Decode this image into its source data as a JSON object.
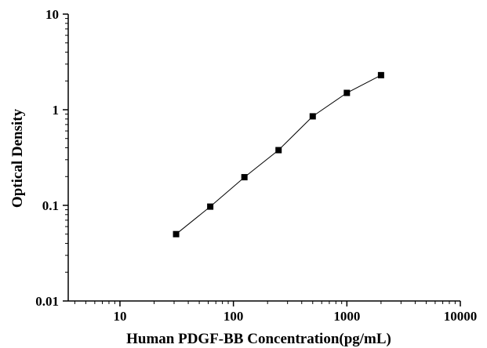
{
  "chart_data": {
    "type": "line",
    "title": "",
    "xlabel": "Human PDGF-BB Concentration(pg/mL)",
    "ylabel": "Optical Density",
    "x_scale": "log",
    "y_scale": "log",
    "xlim": [
      3.5,
      10000
    ],
    "ylim": [
      0.01,
      10
    ],
    "x_ticks": [
      {
        "value": 10,
        "label": "10"
      },
      {
        "value": 100,
        "label": "100"
      },
      {
        "value": 1000,
        "label": "1000"
      },
      {
        "value": 10000,
        "label": "10000"
      }
    ],
    "y_ticks": [
      {
        "value": 0.01,
        "label": "0.01"
      },
      {
        "value": 0.1,
        "label": "0.1"
      },
      {
        "value": 1,
        "label": "1"
      },
      {
        "value": 10,
        "label": "10"
      }
    ],
    "grid": false,
    "legend": "none",
    "marker": "square",
    "line_color": "#000000",
    "marker_color": "#000000",
    "series": [
      {
        "x": [
          31.25,
          62.5,
          125,
          250,
          500,
          1000,
          2000
        ],
        "y": [
          0.05,
          0.097,
          0.197,
          0.378,
          0.853,
          1.5,
          2.3
        ]
      }
    ]
  }
}
